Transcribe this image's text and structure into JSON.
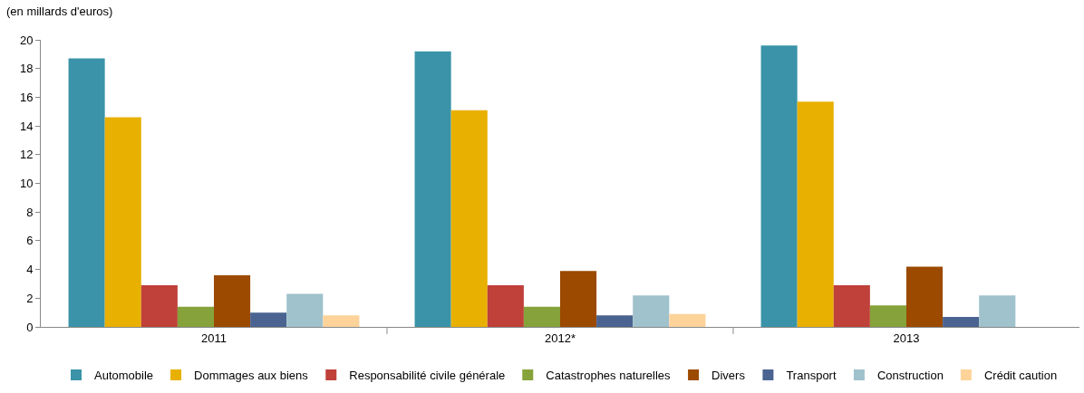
{
  "chart_data": {
    "type": "bar",
    "ylabel": "(en millards d'euros)",
    "categories": [
      "2011",
      "2012*",
      "2013"
    ],
    "ylim": [
      0,
      20
    ],
    "yticks": [
      0,
      2,
      4,
      6,
      8,
      10,
      12,
      14,
      16,
      18,
      20
    ],
    "grid": false,
    "legend": "bottom",
    "series": [
      {
        "name": "Automobile",
        "color": "#3a93a8",
        "values": [
          18.7,
          19.2,
          19.6
        ]
      },
      {
        "name": "Dommages aux biens",
        "color": "#e8b000",
        "values": [
          14.6,
          15.1,
          15.7
        ]
      },
      {
        "name": "Responsabilité civile générale",
        "color": "#c0403a",
        "values": [
          2.9,
          2.9,
          2.9
        ]
      },
      {
        "name": "Catastrophes naturelles",
        "color": "#86a23a",
        "values": [
          1.4,
          1.4,
          1.5
        ]
      },
      {
        "name": "Divers",
        "color": "#9b4a00",
        "values": [
          3.6,
          3.9,
          4.2
        ]
      },
      {
        "name": "Transport",
        "color": "#4a6391",
        "values": [
          1.0,
          0.8,
          0.7
        ]
      },
      {
        "name": "Construction",
        "color": "#9fc2cc",
        "values": [
          2.3,
          2.2,
          2.2
        ]
      },
      {
        "name": "Crédit caution",
        "color": "#fdd39a",
        "values": [
          0.8,
          0.9,
          null
        ]
      }
    ]
  }
}
